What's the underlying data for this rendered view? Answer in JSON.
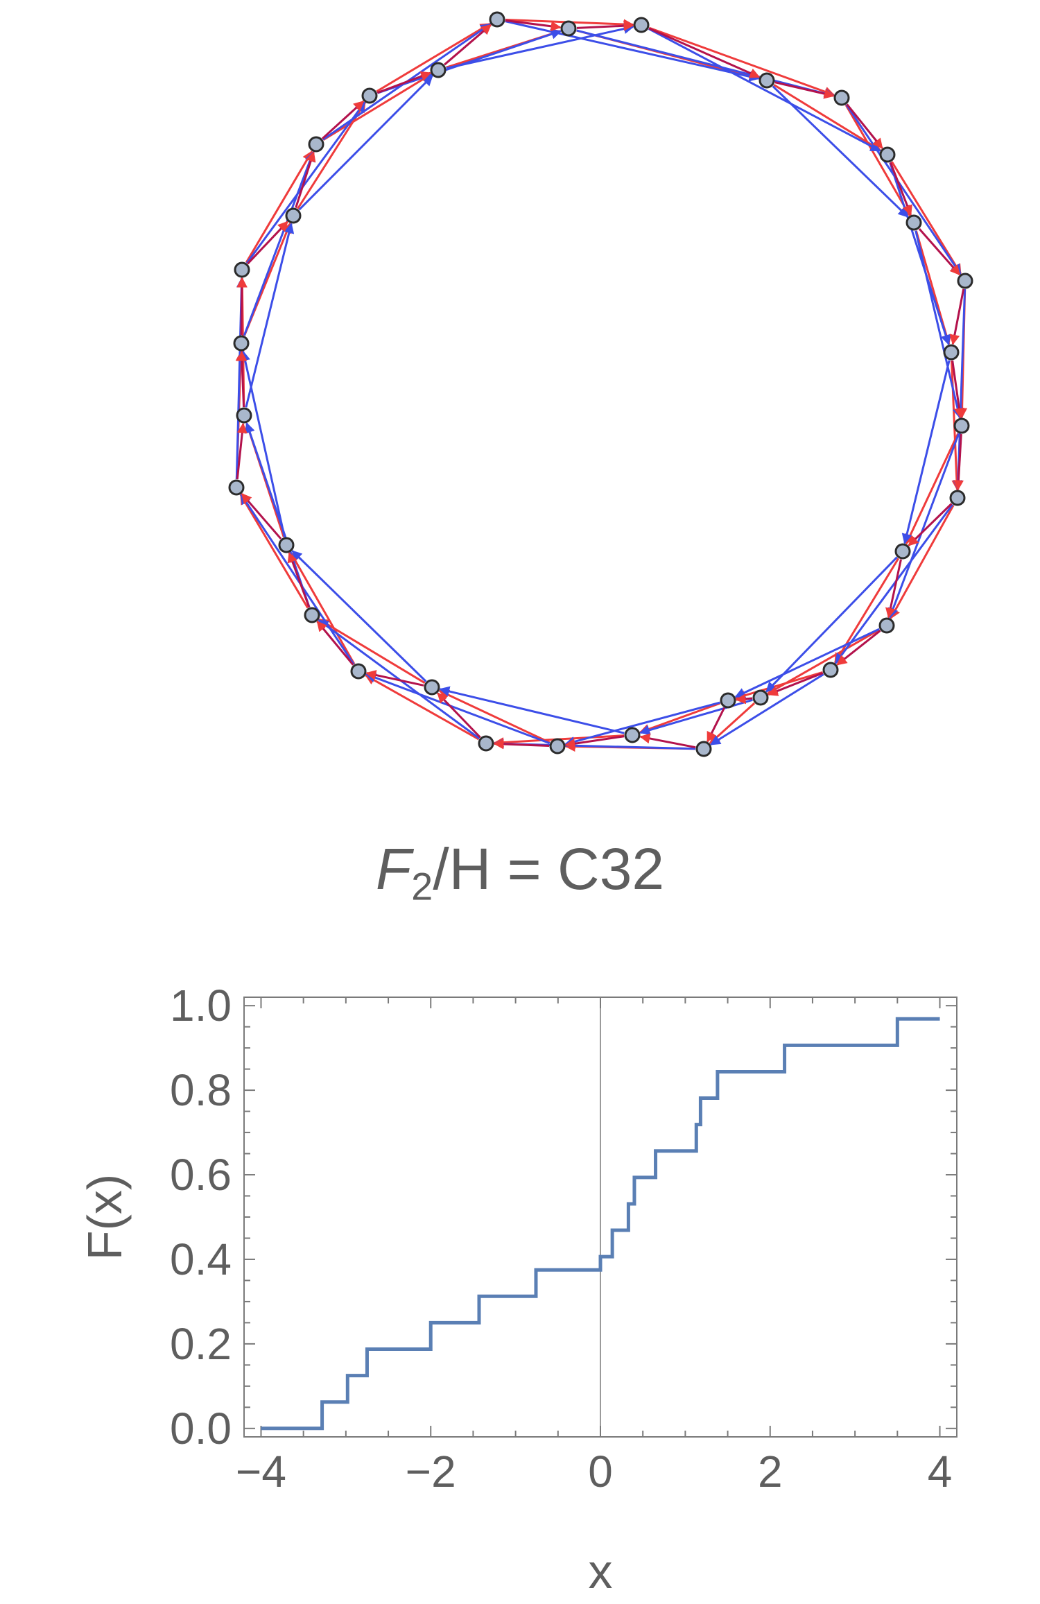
{
  "figure": {
    "caption_f": "F",
    "caption_sub": "2",
    "caption_rest": "/H = C32",
    "colors": {
      "node_fill": "#a9b7cc",
      "node_stroke": "#2b2b2b",
      "red_edges": "#ef3b3b",
      "blue_edges": "#3c4ee8",
      "overlap_edges": "#b3124c",
      "step_line": "#5a7fb4",
      "axis": "#7a7a7a",
      "text": "#5e5e5e"
    },
    "graph_note_icon": "cayley-graph-icon"
  },
  "chart_data": [
    {
      "type": "network",
      "nodes": 32,
      "edge_sets": [
        "red",
        "blue"
      ]
    },
    {
      "type": "line",
      "step": true,
      "xlabel": "x",
      "ylabel": "F(x)",
      "xlim": [
        -4.2,
        4.2
      ],
      "ylim": [
        -0.02,
        1.02
      ],
      "x_ticks": [
        "−4",
        "−2",
        "0",
        "2",
        "4"
      ],
      "y_ticks": [
        "0.0",
        "0.2",
        "0.4",
        "0.6",
        "0.8",
        "1.0"
      ],
      "steps_x": [
        -4.0,
        -3.28,
        -2.98,
        -2.75,
        -2.0,
        -1.43,
        -0.76,
        0.0,
        0.14,
        0.33,
        0.4,
        0.65,
        1.13,
        1.18,
        1.38,
        2.17,
        3.5,
        4.0
      ],
      "steps_y": [
        0.0,
        0.0625,
        0.125,
        0.1875,
        0.25,
        0.3125,
        0.375,
        0.40625,
        0.46875,
        0.53125,
        0.59375,
        0.65625,
        0.71875,
        0.78125,
        0.84375,
        0.90625,
        0.96875,
        0.96875
      ]
    }
  ]
}
